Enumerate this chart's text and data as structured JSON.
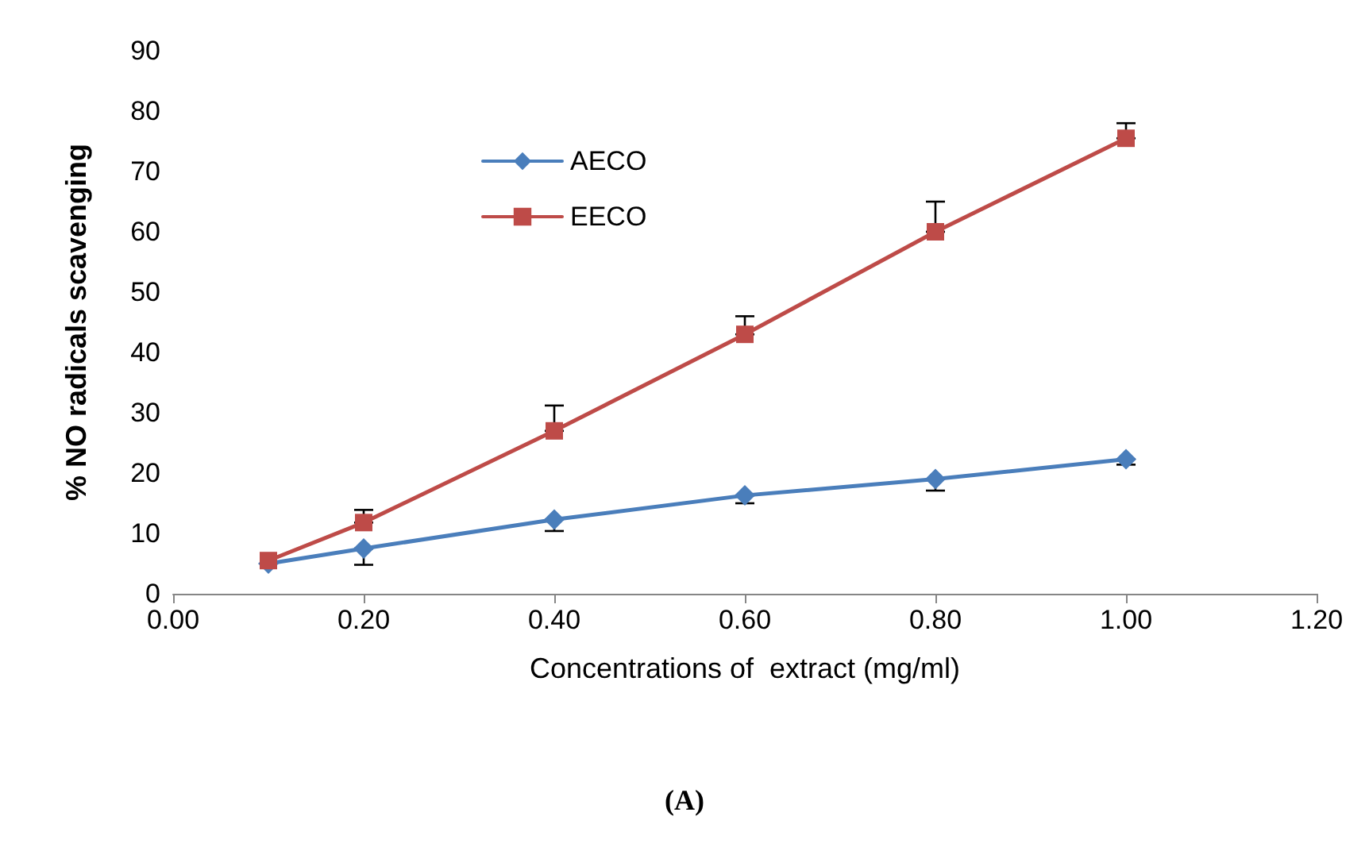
{
  "chart_data": {
    "type": "line",
    "xlabel": "Concentrations of  extract (mg/ml)",
    "ylabel": "% NO radicals scavenging",
    "x": [
      0.1,
      0.2,
      0.4,
      0.6,
      0.8,
      1.0
    ],
    "series": [
      {
        "name": "AECO",
        "color": "#4a7ebb",
        "marker": "diamond",
        "values": [
          5,
          7.5,
          12.3,
          16.3,
          19,
          22.3
        ],
        "errors": [
          null,
          [
            4.8,
            7.5
          ],
          [
            10.4,
            12.3
          ],
          [
            15,
            16.3
          ],
          [
            17.1,
            19
          ],
          [
            21.4,
            22.3
          ]
        ]
      },
      {
        "name": "EECO",
        "color": "#be4b48",
        "marker": "square",
        "values": [
          5.5,
          11.8,
          27,
          43,
          60,
          75.5
        ],
        "errors": [
          null,
          [
            11.8,
            13.9
          ],
          [
            27,
            31.2
          ],
          [
            43,
            46
          ],
          [
            60,
            65
          ],
          [
            75.5,
            78
          ]
        ]
      }
    ],
    "xlim": [
      0,
      1.2
    ],
    "xticks": [
      {
        "value": 0,
        "label": "0.00"
      },
      {
        "value": 0.2,
        "label": "0.20"
      },
      {
        "value": 0.4,
        "label": "0.40"
      },
      {
        "value": 0.6,
        "label": "0.60"
      },
      {
        "value": 0.8,
        "label": "0.80"
      },
      {
        "value": 1.0,
        "label": "1.00"
      },
      {
        "value": 1.2,
        "label": "1.20"
      }
    ],
    "ylim": [
      0,
      90
    ],
    "yticks": [
      0,
      10,
      20,
      30,
      40,
      50,
      60,
      70,
      80,
      90
    ],
    "grid": false,
    "legend": "top left",
    "annotations": [
      "(A)"
    ]
  }
}
